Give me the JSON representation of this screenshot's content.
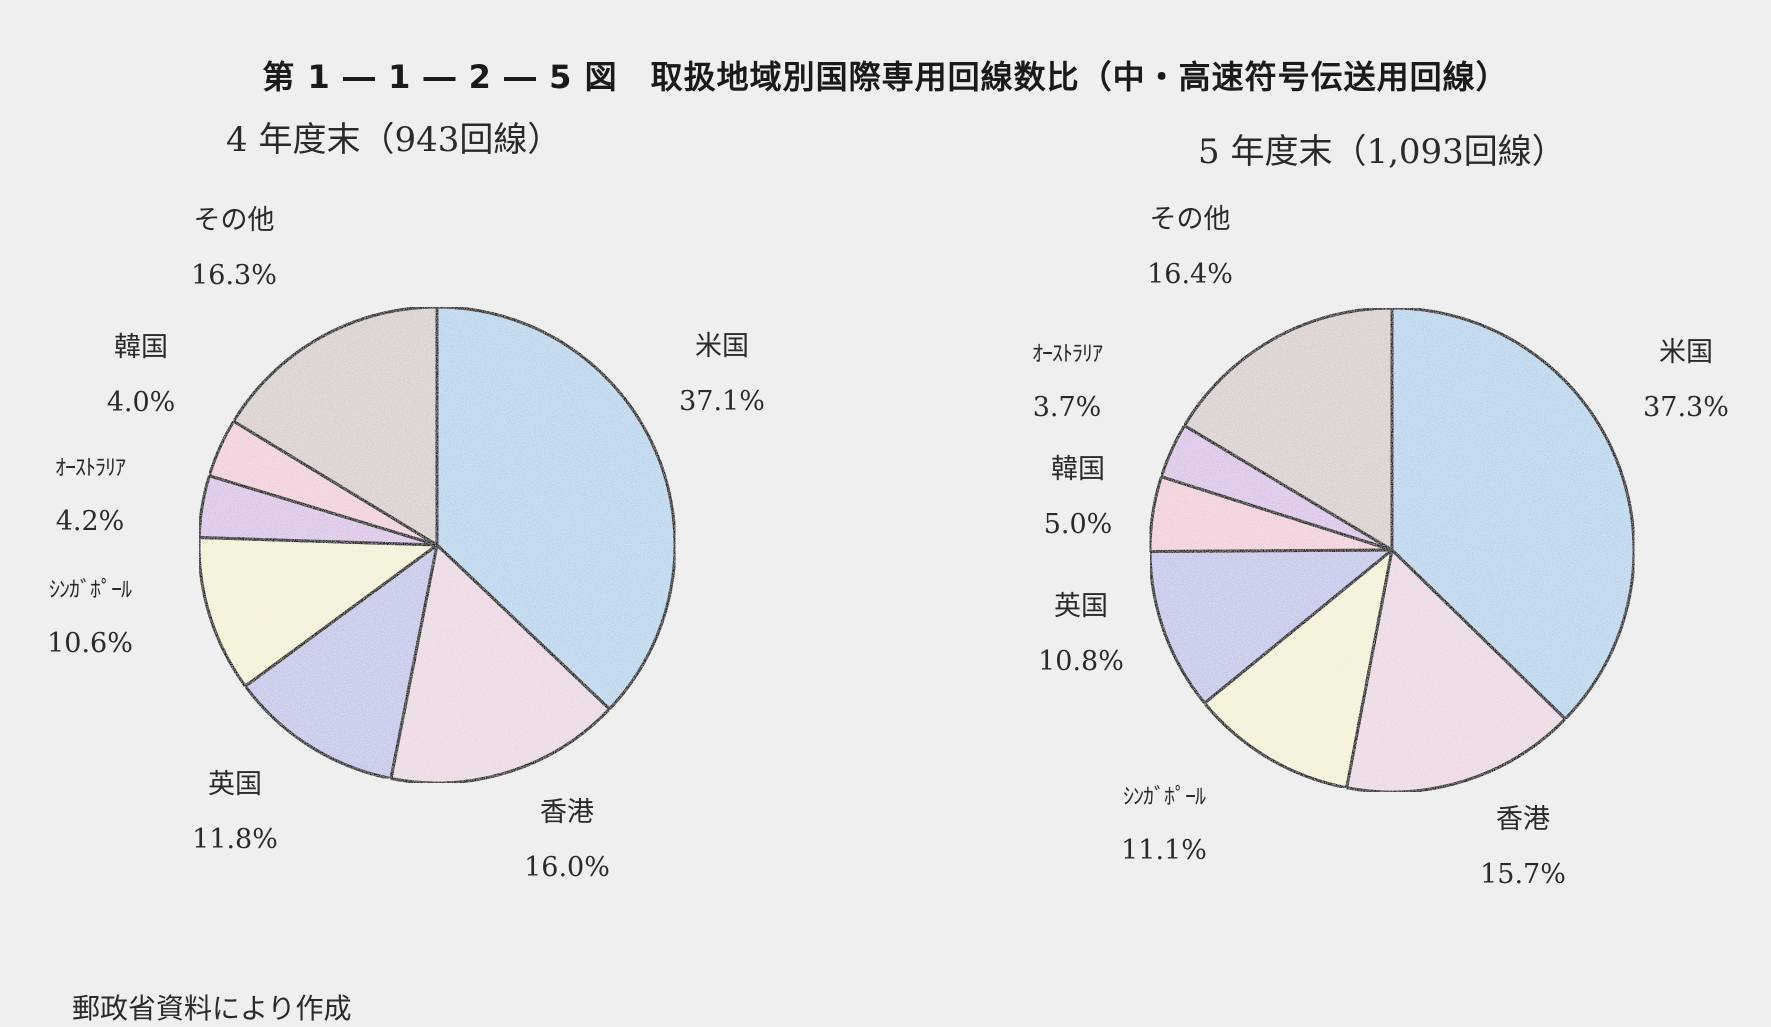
{
  "figure": {
    "title": "第 1 ― 1 ― 2 ― 5 図　取扱地域別国際専用回線数比（中・高速符号伝送用回線）",
    "source": "郵政省資料により作成"
  },
  "colors": {
    "米国": "#bcd6ee",
    "香港": "#ecd9e4",
    "英国": "#c6c8ea",
    "シンガポール": "#f4f1d8",
    "オーストラリア": "#dcc6e8",
    "韓国": "#f2d0dc",
    "その他": "#dad0ce",
    "outline": "#1a1a1a"
  },
  "chart_data": [
    {
      "type": "pie",
      "title": "4 年度末（943回線）",
      "slices": [
        {
          "label": "米国",
          "value": 37.1,
          "value_label": "37.1%"
        },
        {
          "label": "香港",
          "value": 16.0,
          "value_label": "16.0%"
        },
        {
          "label": "英国",
          "value": 11.8,
          "value_label": "11.8%"
        },
        {
          "label": "シンガポール",
          "display": "ｼﾝｶﾞﾎﾟｰﾙ",
          "value": 10.6,
          "value_label": "10.6%"
        },
        {
          "label": "オーストラリア",
          "display": "ｵｰｽﾄﾗﾘｱ",
          "value": 4.2,
          "value_label": "4.2%"
        },
        {
          "label": "韓国",
          "value": 4.0,
          "value_label": "4.0%"
        },
        {
          "label": "その他",
          "value": 16.3,
          "value_label": "16.3%"
        }
      ]
    },
    {
      "type": "pie",
      "title": "5 年度末（1,093回線）",
      "slices": [
        {
          "label": "米国",
          "value": 37.3,
          "value_label": "37.3%"
        },
        {
          "label": "香港",
          "value": 15.7,
          "value_label": "15.7%"
        },
        {
          "label": "シンガポール",
          "display": "ｼﾝｶﾞﾎﾟｰﾙ",
          "value": 11.1,
          "value_label": "11.1%"
        },
        {
          "label": "英国",
          "value": 10.8,
          "value_label": "10.8%"
        },
        {
          "label": "韓国",
          "value": 5.0,
          "value_label": "5.0%"
        },
        {
          "label": "オーストラリア",
          "display": "ｵｰｽﾄﾗﾘｱ",
          "value": 3.7,
          "value_label": "3.7%"
        },
        {
          "label": "その他",
          "value": 16.4,
          "value_label": "16.4%"
        }
      ]
    }
  ]
}
